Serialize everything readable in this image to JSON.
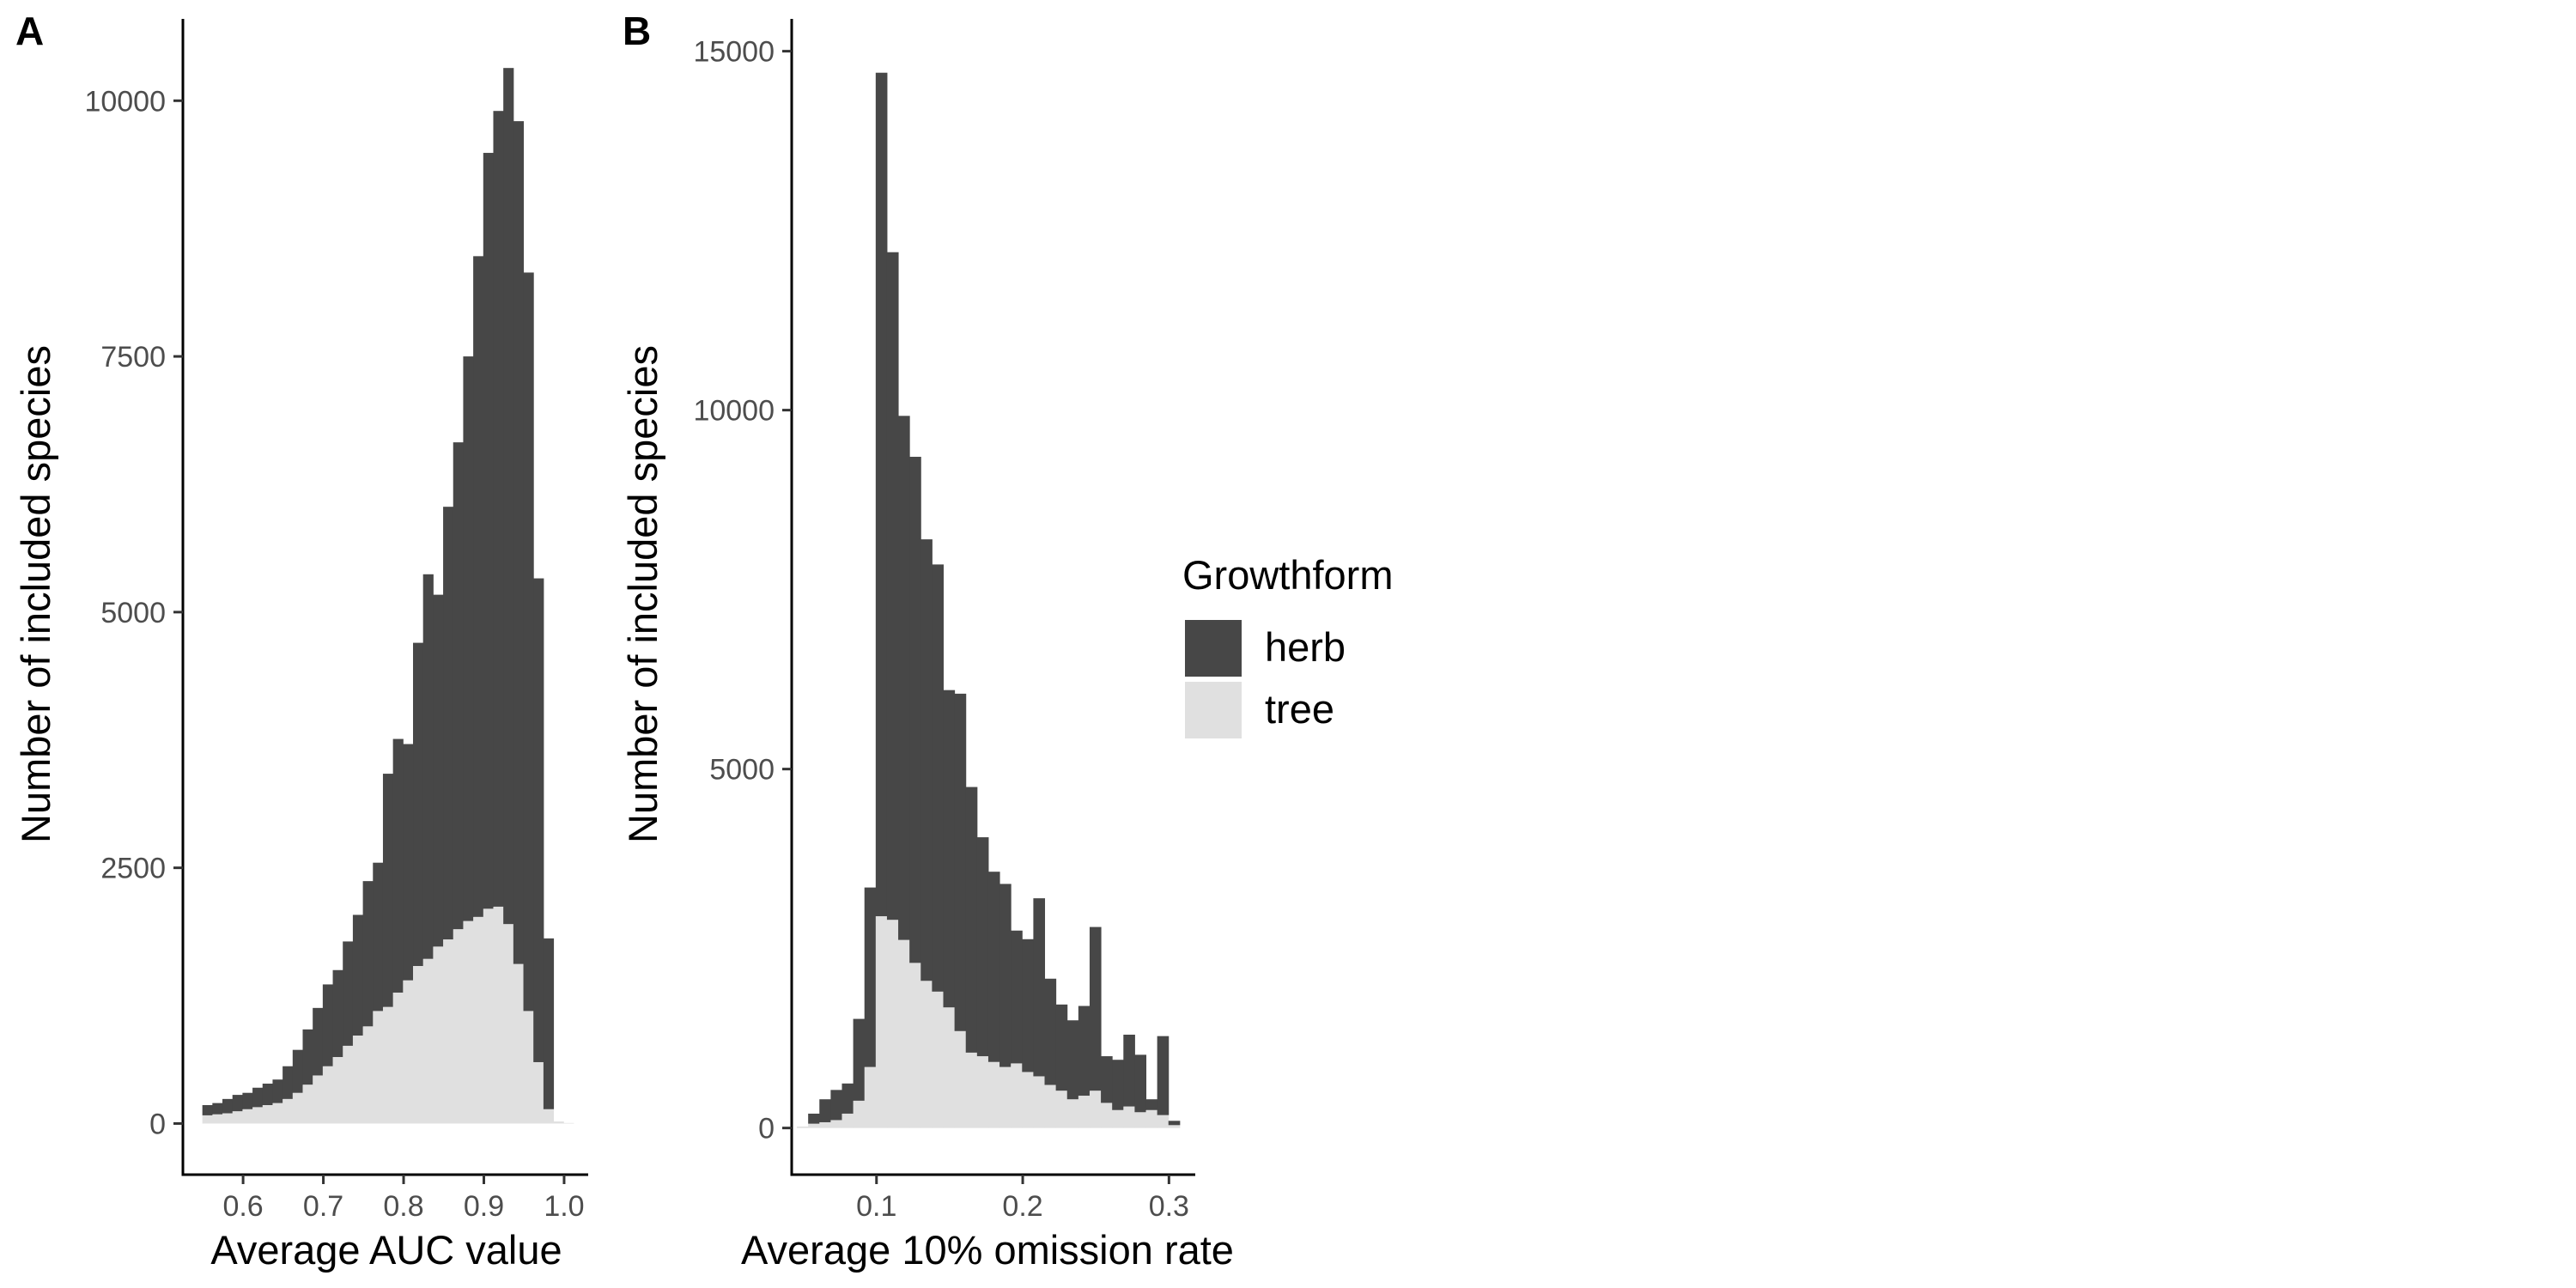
{
  "colors": {
    "herb": "#474747",
    "tree": "#e0e0e0",
    "axis": "#000000",
    "tick_text": "#4d4d4d"
  },
  "legend": {
    "title": "Growthform",
    "items": [
      {
        "label": "herb",
        "color": "#474747"
      },
      {
        "label": "tree",
        "color": "#e0e0e0"
      }
    ]
  },
  "chart_data": [
    {
      "type": "bar",
      "stacked": true,
      "tag": "A",
      "xlabel": "Average AUC value",
      "ylabel": "Number of included species",
      "xlim": [
        0.525,
        1.03
      ],
      "ylim": [
        -500,
        10800
      ],
      "xticks": [
        0.6,
        0.7,
        0.8,
        0.9,
        1.0
      ],
      "xtick_labels": [
        "0.6",
        "0.7",
        "0.8",
        "0.9",
        "1.0"
      ],
      "yticks": [
        0,
        2500,
        5000,
        7500,
        10000
      ],
      "ytick_labels": [
        "0",
        "2500",
        "5000",
        "7500",
        "10000"
      ],
      "bin_width": 0.0125,
      "x": [
        0.5555,
        0.568,
        0.5805,
        0.593,
        0.6055,
        0.618,
        0.6305,
        0.643,
        0.6555,
        0.668,
        0.6805,
        0.693,
        0.7055,
        0.718,
        0.7305,
        0.743,
        0.7555,
        0.768,
        0.7805,
        0.793,
        0.8055,
        0.818,
        0.8305,
        0.843,
        0.8555,
        0.868,
        0.8805,
        0.893,
        0.9055,
        0.918,
        0.9305,
        0.943,
        0.9555,
        0.968,
        0.9805,
        0.993,
        1.0055
      ],
      "series": [
        {
          "name": "tree",
          "values": [
            80,
            90,
            100,
            120,
            140,
            160,
            180,
            200,
            240,
            300,
            380,
            470,
            560,
            650,
            760,
            860,
            950,
            1100,
            1140,
            1280,
            1400,
            1540,
            1610,
            1730,
            1800,
            1900,
            1980,
            2020,
            2100,
            2120,
            1950,
            1560,
            1100,
            600,
            140,
            20,
            5
          ]
        },
        {
          "name": "herb",
          "values": [
            100,
            110,
            140,
            160,
            160,
            190,
            210,
            230,
            320,
            420,
            540,
            660,
            800,
            850,
            1020,
            1180,
            1420,
            1450,
            2280,
            2480,
            2310,
            3160,
            3760,
            3440,
            4230,
            4760,
            5520,
            6460,
            7390,
            7780,
            8370,
            8240,
            7220,
            4730,
            1670,
            0,
            0
          ]
        }
      ]
    },
    {
      "type": "bar",
      "stacked": true,
      "tag": "B",
      "xlabel": "Average 10% omission rate",
      "ylabel": "Number of included species",
      "xlim": [
        0.042,
        0.318
      ],
      "ylim": [
        -650,
        15450
      ],
      "xticks": [
        0.1,
        0.2,
        0.3
      ],
      "xtick_labels": [
        "0.1",
        "0.2",
        "0.3"
      ],
      "yticks": [
        0,
        5000,
        10000,
        15000
      ],
      "ytick_labels": [
        "0",
        "5000",
        "10000",
        "15000"
      ],
      "bin_width": 0.0077,
      "x": [
        0.0494,
        0.0571,
        0.0648,
        0.0725,
        0.0802,
        0.0879,
        0.0956,
        0.1033,
        0.111,
        0.1187,
        0.1264,
        0.1341,
        0.1418,
        0.1495,
        0.1572,
        0.1649,
        0.1726,
        0.1803,
        0.188,
        0.1957,
        0.2034,
        0.2111,
        0.2188,
        0.2265,
        0.2342,
        0.2419,
        0.2496,
        0.2573,
        0.265,
        0.2727,
        0.2804,
        0.2881,
        0.2958,
        0.3035
      ],
      "series": [
        {
          "name": "tree",
          "values": [
            20,
            60,
            80,
            110,
            200,
            380,
            850,
            2950,
            2900,
            2620,
            2300,
            2050,
            1900,
            1680,
            1350,
            1050,
            1000,
            920,
            850,
            900,
            780,
            720,
            600,
            520,
            400,
            450,
            520,
            350,
            250,
            300,
            220,
            250,
            180,
            40
          ]
        },
        {
          "name": "herb",
          "values": [
            0,
            140,
            320,
            420,
            420,
            1140,
            2500,
            11750,
            9300,
            7300,
            7050,
            6150,
            5950,
            4420,
            4700,
            3700,
            3050,
            2650,
            2550,
            1850,
            1850,
            2480,
            1480,
            1200,
            1100,
            1250,
            2280,
            650,
            700,
            1000,
            800,
            150,
            1100,
            60
          ]
        }
      ]
    }
  ]
}
